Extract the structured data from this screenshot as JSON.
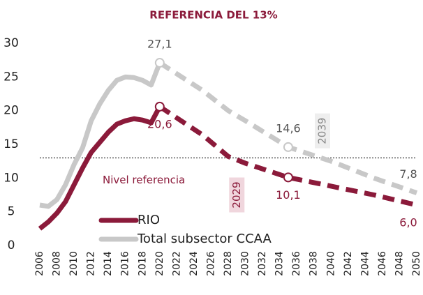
{
  "chart_data": {
    "type": "line",
    "title": "REFERENCIA DEL 13%",
    "x": [
      2006,
      2007,
      2008,
      2009,
      2010,
      2011,
      2012,
      2013,
      2014,
      2015,
      2016,
      2017,
      2018,
      2019,
      2020,
      2025,
      2028,
      2030,
      2035,
      2040,
      2045,
      2050
    ],
    "series": [
      {
        "name": "RIO",
        "color": "#8b1a3a",
        "values": [
          2.5,
          3.5,
          4.8,
          6.5,
          9,
          11.5,
          13.8,
          15.3,
          16.8,
          18,
          18.5,
          18.8,
          18.6,
          18.2,
          20.6,
          16.4,
          13.2,
          12.2,
          10.1,
          8.8,
          7.5,
          6.0
        ],
        "value_labels": [
          null,
          null,
          null,
          null,
          null,
          null,
          null,
          null,
          null,
          null,
          null,
          null,
          null,
          null,
          "20,6",
          null,
          null,
          null,
          "10,1",
          null,
          null,
          "6,0"
        ]
      },
      {
        "name": "Total subsector CCAA",
        "color": "#c8c8c8",
        "values": [
          6,
          5.8,
          6.8,
          9,
          12,
          14.5,
          18.5,
          21,
          23,
          24.5,
          25,
          24.9,
          24.5,
          23.8,
          27.1,
          23,
          20,
          18.5,
          14.6,
          12.5,
          10,
          7.8
        ],
        "value_labels": [
          null,
          null,
          null,
          null,
          null,
          null,
          null,
          null,
          null,
          null,
          null,
          null,
          null,
          null,
          "27,1",
          null,
          null,
          null,
          "14,6",
          null,
          null,
          "7,8"
        ]
      }
    ],
    "dashed_from_x": 2020,
    "reference": {
      "value": 13,
      "label": "Nivel referencia"
    },
    "annotations": [
      {
        "label": "2029",
        "x": 2029,
        "y": 7.5
      },
      {
        "label": "2039",
        "x": 2039,
        "y": 17
      }
    ],
    "xlim": [
      2006,
      2050
    ],
    "xticks": [
      2006,
      2008,
      2010,
      2012,
      2014,
      2016,
      2018,
      2020,
      2022,
      2024,
      2026,
      2028,
      2030,
      2032,
      2034,
      2036,
      2038,
      2040,
      2042,
      2044,
      2046,
      2048,
      2050
    ],
    "ylim": [
      0,
      30
    ],
    "yticks": [
      0,
      5,
      10,
      15,
      20,
      25,
      30
    ],
    "grid": false,
    "legend": "lower left"
  }
}
